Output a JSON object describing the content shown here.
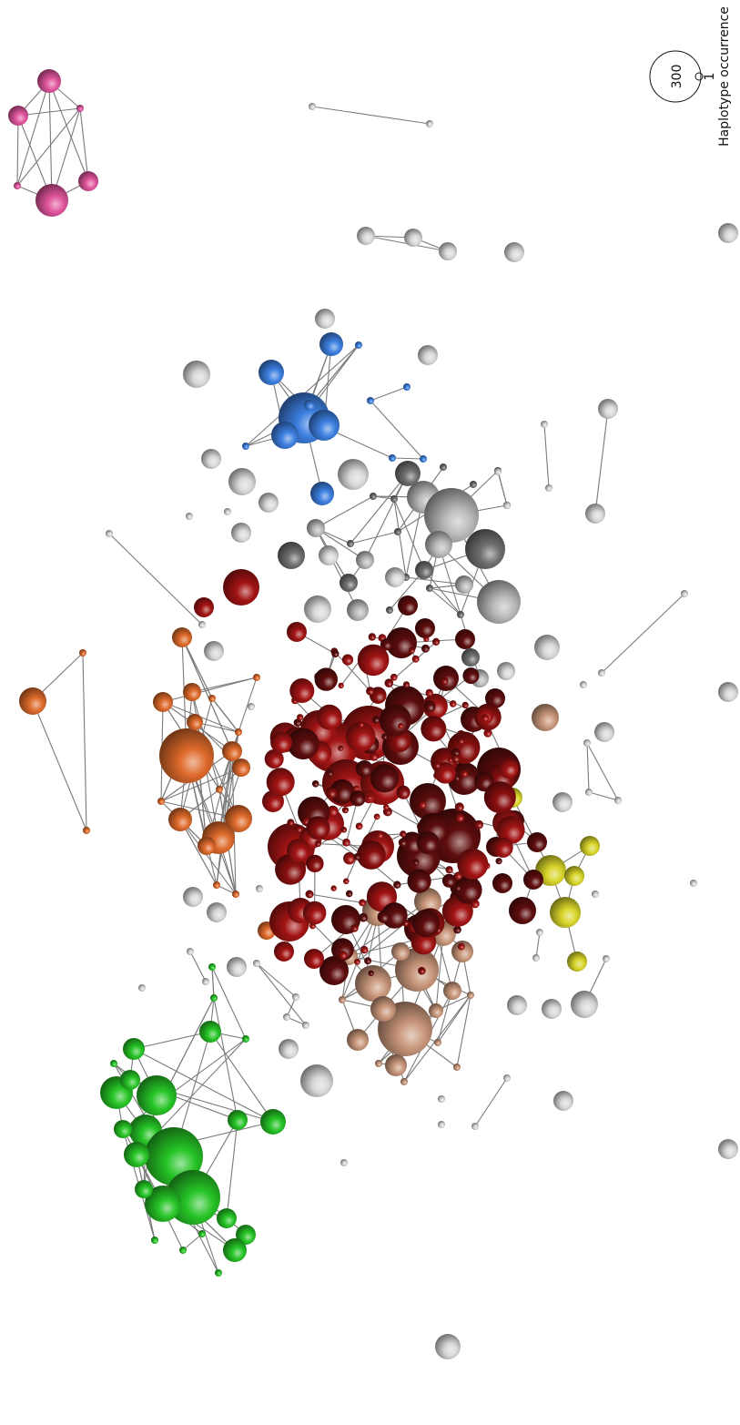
{
  "legend": {
    "title": "Haplotype occurrence",
    "large_label": "300",
    "small_label": "1"
  },
  "palette": {
    "magenta": "#e0559d",
    "blue": "#3d7fe0",
    "gray": "#b9b9b9",
    "white": "#d8d8d8",
    "darkred": "#8a0f0f",
    "red": "#c51d1d",
    "orange": "#de6a2b",
    "tan": "#c8967a",
    "green": "#26c426",
    "yellow": "#d8d52a",
    "edge": "#7a7a7a"
  },
  "clusters": [
    {
      "name": "magenta-cluster",
      "color": "magenta",
      "node_count": 6
    },
    {
      "name": "blue-cluster",
      "color": "blue",
      "node_count": 14
    },
    {
      "name": "gray-cluster",
      "color": "gray",
      "node_count": 40
    },
    {
      "name": "red-cluster",
      "color": "darkred",
      "node_count": 200
    },
    {
      "name": "orange-cluster",
      "color": "orange",
      "node_count": 25
    },
    {
      "name": "tan-cluster",
      "color": "tan",
      "node_count": 25
    },
    {
      "name": "green-cluster",
      "color": "green",
      "node_count": 30
    },
    {
      "name": "yellow-cluster",
      "color": "yellow",
      "node_count": 6
    }
  ]
}
